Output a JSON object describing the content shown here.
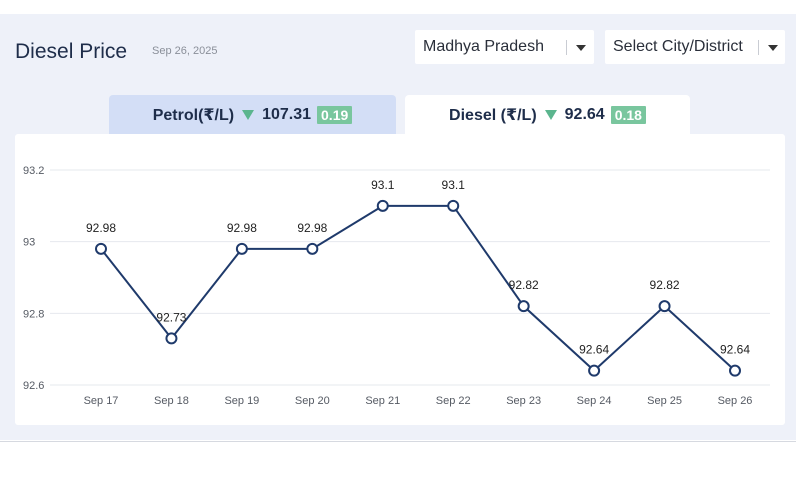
{
  "header": {
    "title": "Diesel Price",
    "date": "Sep 26, 2025"
  },
  "filters": {
    "state": "Madhya Pradesh",
    "city": "Select City/District"
  },
  "tabs": {
    "petrol": {
      "label": "Petrol(₹/L)",
      "price": "107.31",
      "change": "0.19",
      "direction": "down"
    },
    "diesel": {
      "label": "Diesel (₹/L)",
      "price": "92.64",
      "change": "0.18",
      "direction": "down",
      "active": true
    }
  },
  "colors": {
    "line": "#1f3a6b",
    "badge": "#79c69e",
    "down_arrow": "#5bb58e",
    "active_tab": "#ffffff",
    "inactive_tab": "#d3def6"
  },
  "chart_data": {
    "type": "line",
    "categories": [
      "Sep 17",
      "Sep 18",
      "Sep 19",
      "Sep 20",
      "Sep 21",
      "Sep 22",
      "Sep 23",
      "Sep 24",
      "Sep 25",
      "Sep 26"
    ],
    "series": [
      {
        "values": [
          92.98,
          92.73,
          92.98,
          92.98,
          93.1,
          93.1,
          92.82,
          92.64,
          92.82,
          92.64
        ]
      }
    ],
    "point_labels": [
      "92.98",
      "92.73",
      "92.98",
      "92.98",
      "93.1",
      "93.1",
      "92.82",
      "92.64",
      "92.82",
      "92.64"
    ],
    "y_ticks": [
      "93.2",
      "93",
      "92.8",
      "92.6"
    ],
    "y_tick_values": [
      93.2,
      93.0,
      92.8,
      92.6
    ],
    "ylim": [
      92.6,
      93.2
    ],
    "grid": true,
    "title": "",
    "xlabel": "",
    "ylabel": ""
  }
}
